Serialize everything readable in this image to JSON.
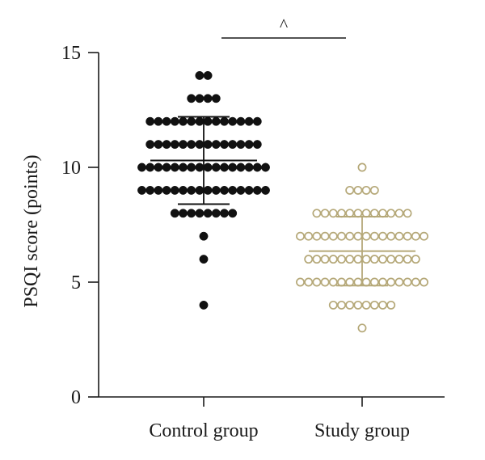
{
  "chart_data": {
    "type": "scatter",
    "ylabel": "PSQI score (points)",
    "ylim": [
      0,
      15
    ],
    "yticks": [
      0,
      5,
      10,
      15
    ],
    "categories": [
      "Control group",
      "Study group"
    ],
    "significance": {
      "label": "^",
      "between": [
        "Control group",
        "Study group"
      ]
    },
    "colors": {
      "Control group": "#111111",
      "Study group": "#b5a878"
    },
    "marker_fill": {
      "Control group": "filled",
      "Study group": "hollow"
    },
    "series": [
      {
        "group": "Control group",
        "mean": 10.3,
        "sd_lower": 8.4,
        "sd_upper": 12.2,
        "points": [
          {
            "y": 14,
            "n": 2
          },
          {
            "y": 13,
            "n": 4
          },
          {
            "y": 12,
            "n": 14
          },
          {
            "y": 11,
            "n": 14
          },
          {
            "y": 10,
            "n": 16
          },
          {
            "y": 9,
            "n": 16
          },
          {
            "y": 8,
            "n": 8
          },
          {
            "y": 7,
            "n": 1
          },
          {
            "y": 6,
            "n": 1
          },
          {
            "y": 4,
            "n": 1
          }
        ]
      },
      {
        "group": "Study group",
        "mean": 6.35,
        "sd_lower": 4.85,
        "sd_upper": 7.85,
        "points": [
          {
            "y": 10,
            "n": 1
          },
          {
            "y": 9,
            "n": 4
          },
          {
            "y": 8,
            "n": 12
          },
          {
            "y": 7,
            "n": 16
          },
          {
            "y": 6,
            "n": 14
          },
          {
            "y": 5,
            "n": 16
          },
          {
            "y": 4,
            "n": 8
          },
          {
            "y": 3,
            "n": 1
          }
        ]
      }
    ]
  }
}
